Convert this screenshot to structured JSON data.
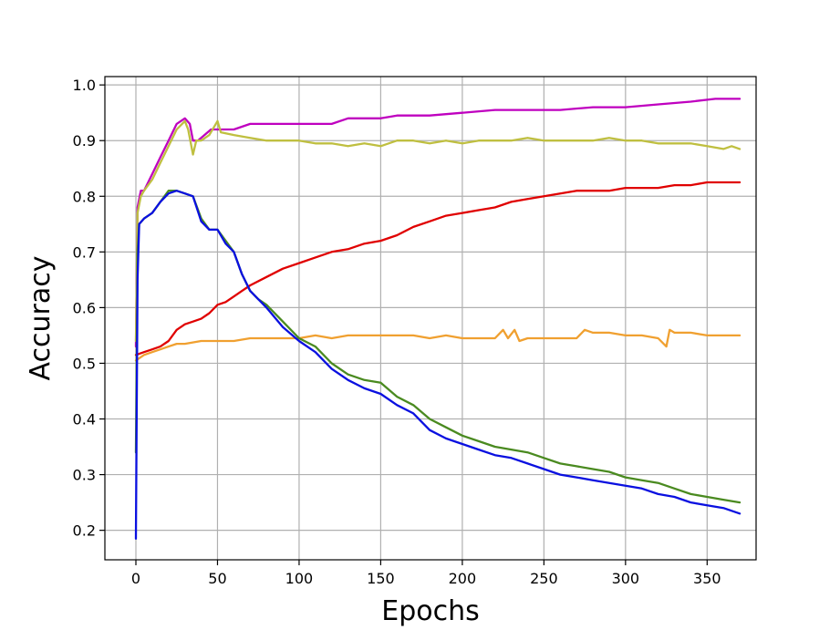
{
  "chart_data": {
    "type": "line",
    "xlabel": "Epochs",
    "ylabel": "Accuracy",
    "xlim": [
      -19,
      380
    ],
    "ylim": [
      0.147,
      1.015
    ],
    "xticks": [
      0,
      50,
      100,
      150,
      200,
      250,
      300,
      350
    ],
    "yticks": [
      0.2,
      0.3,
      0.4,
      0.5,
      0.6,
      0.7,
      0.8,
      0.9,
      1.0
    ],
    "xtick_labels": [
      "0",
      "50",
      "100",
      "150",
      "200",
      "250",
      "300",
      "350"
    ],
    "ytick_labels": [
      "0.2",
      "0.3",
      "0.4",
      "0.5",
      "0.6",
      "0.7",
      "0.8",
      "0.9",
      "1.0"
    ],
    "grid": true,
    "legend": "none",
    "series": [
      {
        "color": "#bf00bf",
        "points": [
          [
            0,
            0.53
          ],
          [
            1,
            0.78
          ],
          [
            3,
            0.81
          ],
          [
            5,
            0.81
          ],
          [
            10,
            0.84
          ],
          [
            15,
            0.87
          ],
          [
            20,
            0.9
          ],
          [
            25,
            0.93
          ],
          [
            30,
            0.94
          ],
          [
            33,
            0.93
          ],
          [
            35,
            0.9
          ],
          [
            38,
            0.9
          ],
          [
            42,
            0.91
          ],
          [
            46,
            0.92
          ],
          [
            50,
            0.92
          ],
          [
            60,
            0.92
          ],
          [
            70,
            0.93
          ],
          [
            80,
            0.93
          ],
          [
            90,
            0.93
          ],
          [
            100,
            0.93
          ],
          [
            110,
            0.93
          ],
          [
            120,
            0.93
          ],
          [
            130,
            0.94
          ],
          [
            140,
            0.94
          ],
          [
            150,
            0.94
          ],
          [
            160,
            0.945
          ],
          [
            170,
            0.945
          ],
          [
            180,
            0.945
          ],
          [
            200,
            0.95
          ],
          [
            220,
            0.955
          ],
          [
            240,
            0.955
          ],
          [
            260,
            0.955
          ],
          [
            280,
            0.96
          ],
          [
            300,
            0.96
          ],
          [
            320,
            0.965
          ],
          [
            340,
            0.97
          ],
          [
            355,
            0.975
          ],
          [
            365,
            0.975
          ],
          [
            370,
            0.975
          ]
        ]
      },
      {
        "color": "#bfbf40",
        "points": [
          [
            0,
            0.54
          ],
          [
            1,
            0.77
          ],
          [
            3,
            0.8
          ],
          [
            5,
            0.81
          ],
          [
            10,
            0.83
          ],
          [
            15,
            0.86
          ],
          [
            20,
            0.89
          ],
          [
            25,
            0.92
          ],
          [
            30,
            0.935
          ],
          [
            32,
            0.92
          ],
          [
            35,
            0.875
          ],
          [
            37,
            0.9
          ],
          [
            40,
            0.9
          ],
          [
            45,
            0.91
          ],
          [
            50,
            0.935
          ],
          [
            52,
            0.915
          ],
          [
            60,
            0.91
          ],
          [
            70,
            0.905
          ],
          [
            80,
            0.9
          ],
          [
            90,
            0.9
          ],
          [
            100,
            0.9
          ],
          [
            110,
            0.895
          ],
          [
            120,
            0.895
          ],
          [
            130,
            0.89
          ],
          [
            140,
            0.895
          ],
          [
            150,
            0.89
          ],
          [
            160,
            0.9
          ],
          [
            170,
            0.9
          ],
          [
            180,
            0.895
          ],
          [
            190,
            0.9
          ],
          [
            200,
            0.895
          ],
          [
            210,
            0.9
          ],
          [
            220,
            0.9
          ],
          [
            230,
            0.9
          ],
          [
            240,
            0.905
          ],
          [
            250,
            0.9
          ],
          [
            260,
            0.9
          ],
          [
            270,
            0.9
          ],
          [
            280,
            0.9
          ],
          [
            290,
            0.905
          ],
          [
            300,
            0.9
          ],
          [
            310,
            0.9
          ],
          [
            320,
            0.895
          ],
          [
            330,
            0.895
          ],
          [
            340,
            0.895
          ],
          [
            350,
            0.89
          ],
          [
            360,
            0.885
          ],
          [
            365,
            0.89
          ],
          [
            370,
            0.885
          ]
        ]
      },
      {
        "color": "#e00000",
        "points": [
          [
            0,
            0.515
          ],
          [
            5,
            0.52
          ],
          [
            10,
            0.525
          ],
          [
            15,
            0.53
          ],
          [
            20,
            0.54
          ],
          [
            25,
            0.56
          ],
          [
            30,
            0.57
          ],
          [
            35,
            0.575
          ],
          [
            40,
            0.58
          ],
          [
            45,
            0.59
          ],
          [
            50,
            0.605
          ],
          [
            55,
            0.61
          ],
          [
            60,
            0.62
          ],
          [
            65,
            0.63
          ],
          [
            70,
            0.64
          ],
          [
            80,
            0.655
          ],
          [
            90,
            0.67
          ],
          [
            100,
            0.68
          ],
          [
            110,
            0.69
          ],
          [
            120,
            0.7
          ],
          [
            130,
            0.705
          ],
          [
            140,
            0.715
          ],
          [
            150,
            0.72
          ],
          [
            160,
            0.73
          ],
          [
            170,
            0.745
          ],
          [
            180,
            0.755
          ],
          [
            190,
            0.765
          ],
          [
            200,
            0.77
          ],
          [
            210,
            0.775
          ],
          [
            220,
            0.78
          ],
          [
            230,
            0.79
          ],
          [
            240,
            0.795
          ],
          [
            250,
            0.8
          ],
          [
            260,
            0.805
          ],
          [
            270,
            0.81
          ],
          [
            280,
            0.81
          ],
          [
            290,
            0.81
          ],
          [
            300,
            0.815
          ],
          [
            310,
            0.815
          ],
          [
            320,
            0.815
          ],
          [
            330,
            0.82
          ],
          [
            340,
            0.82
          ],
          [
            350,
            0.825
          ],
          [
            360,
            0.825
          ],
          [
            370,
            0.825
          ]
        ]
      },
      {
        "color": "#f0a030",
        "points": [
          [
            0,
            0.505
          ],
          [
            5,
            0.515
          ],
          [
            10,
            0.52
          ],
          [
            15,
            0.525
          ],
          [
            20,
            0.53
          ],
          [
            25,
            0.535
          ],
          [
            30,
            0.535
          ],
          [
            40,
            0.54
          ],
          [
            50,
            0.54
          ],
          [
            60,
            0.54
          ],
          [
            70,
            0.545
          ],
          [
            80,
            0.545
          ],
          [
            90,
            0.545
          ],
          [
            100,
            0.545
          ],
          [
            110,
            0.55
          ],
          [
            120,
            0.545
          ],
          [
            130,
            0.55
          ],
          [
            140,
            0.55
          ],
          [
            150,
            0.55
          ],
          [
            160,
            0.55
          ],
          [
            170,
            0.55
          ],
          [
            180,
            0.545
          ],
          [
            190,
            0.55
          ],
          [
            200,
            0.545
          ],
          [
            210,
            0.545
          ],
          [
            220,
            0.545
          ],
          [
            225,
            0.56
          ],
          [
            228,
            0.545
          ],
          [
            232,
            0.56
          ],
          [
            235,
            0.54
          ],
          [
            240,
            0.545
          ],
          [
            250,
            0.545
          ],
          [
            260,
            0.545
          ],
          [
            270,
            0.545
          ],
          [
            275,
            0.56
          ],
          [
            280,
            0.555
          ],
          [
            290,
            0.555
          ],
          [
            300,
            0.55
          ],
          [
            310,
            0.55
          ],
          [
            320,
            0.545
          ],
          [
            325,
            0.53
          ],
          [
            327,
            0.56
          ],
          [
            330,
            0.555
          ],
          [
            335,
            0.555
          ],
          [
            340,
            0.555
          ],
          [
            350,
            0.55
          ],
          [
            360,
            0.55
          ],
          [
            370,
            0.55
          ]
        ]
      },
      {
        "color": "#4a8a20",
        "points": [
          [
            0,
            0.34
          ],
          [
            1,
            0.7
          ],
          [
            2,
            0.75
          ],
          [
            5,
            0.76
          ],
          [
            10,
            0.77
          ],
          [
            15,
            0.79
          ],
          [
            20,
            0.81
          ],
          [
            25,
            0.81
          ],
          [
            30,
            0.805
          ],
          [
            35,
            0.8
          ],
          [
            40,
            0.76
          ],
          [
            45,
            0.74
          ],
          [
            50,
            0.74
          ],
          [
            55,
            0.72
          ],
          [
            60,
            0.7
          ],
          [
            65,
            0.66
          ],
          [
            70,
            0.63
          ],
          [
            75,
            0.615
          ],
          [
            80,
            0.605
          ],
          [
            90,
            0.575
          ],
          [
            100,
            0.545
          ],
          [
            110,
            0.53
          ],
          [
            120,
            0.5
          ],
          [
            130,
            0.48
          ],
          [
            140,
            0.47
          ],
          [
            150,
            0.465
          ],
          [
            160,
            0.44
          ],
          [
            170,
            0.425
          ],
          [
            180,
            0.4
          ],
          [
            190,
            0.385
          ],
          [
            200,
            0.37
          ],
          [
            210,
            0.36
          ],
          [
            220,
            0.35
          ],
          [
            230,
            0.345
          ],
          [
            240,
            0.34
          ],
          [
            250,
            0.33
          ],
          [
            260,
            0.32
          ],
          [
            270,
            0.315
          ],
          [
            280,
            0.31
          ],
          [
            290,
            0.305
          ],
          [
            300,
            0.295
          ],
          [
            310,
            0.29
          ],
          [
            320,
            0.285
          ],
          [
            330,
            0.275
          ],
          [
            340,
            0.265
          ],
          [
            350,
            0.26
          ],
          [
            360,
            0.255
          ],
          [
            370,
            0.25
          ]
        ]
      },
      {
        "color": "#0a10e0",
        "points": [
          [
            0,
            0.185
          ],
          [
            1,
            0.65
          ],
          [
            2,
            0.75
          ],
          [
            5,
            0.76
          ],
          [
            10,
            0.77
          ],
          [
            15,
            0.79
          ],
          [
            20,
            0.805
          ],
          [
            25,
            0.81
          ],
          [
            30,
            0.805
          ],
          [
            35,
            0.8
          ],
          [
            40,
            0.755
          ],
          [
            45,
            0.74
          ],
          [
            50,
            0.74
          ],
          [
            55,
            0.715
          ],
          [
            60,
            0.7
          ],
          [
            65,
            0.66
          ],
          [
            70,
            0.63
          ],
          [
            75,
            0.615
          ],
          [
            80,
            0.6
          ],
          [
            90,
            0.565
          ],
          [
            100,
            0.54
          ],
          [
            110,
            0.52
          ],
          [
            120,
            0.49
          ],
          [
            130,
            0.47
          ],
          [
            140,
            0.455
          ],
          [
            150,
            0.445
          ],
          [
            160,
            0.425
          ],
          [
            170,
            0.41
          ],
          [
            180,
            0.38
          ],
          [
            190,
            0.365
          ],
          [
            200,
            0.355
          ],
          [
            210,
            0.345
          ],
          [
            220,
            0.335
          ],
          [
            230,
            0.33
          ],
          [
            240,
            0.32
          ],
          [
            250,
            0.31
          ],
          [
            260,
            0.3
          ],
          [
            270,
            0.295
          ],
          [
            280,
            0.29
          ],
          [
            290,
            0.285
          ],
          [
            300,
            0.28
          ],
          [
            310,
            0.275
          ],
          [
            320,
            0.265
          ],
          [
            330,
            0.26
          ],
          [
            340,
            0.25
          ],
          [
            350,
            0.245
          ],
          [
            360,
            0.24
          ],
          [
            370,
            0.23
          ]
        ]
      }
    ]
  }
}
